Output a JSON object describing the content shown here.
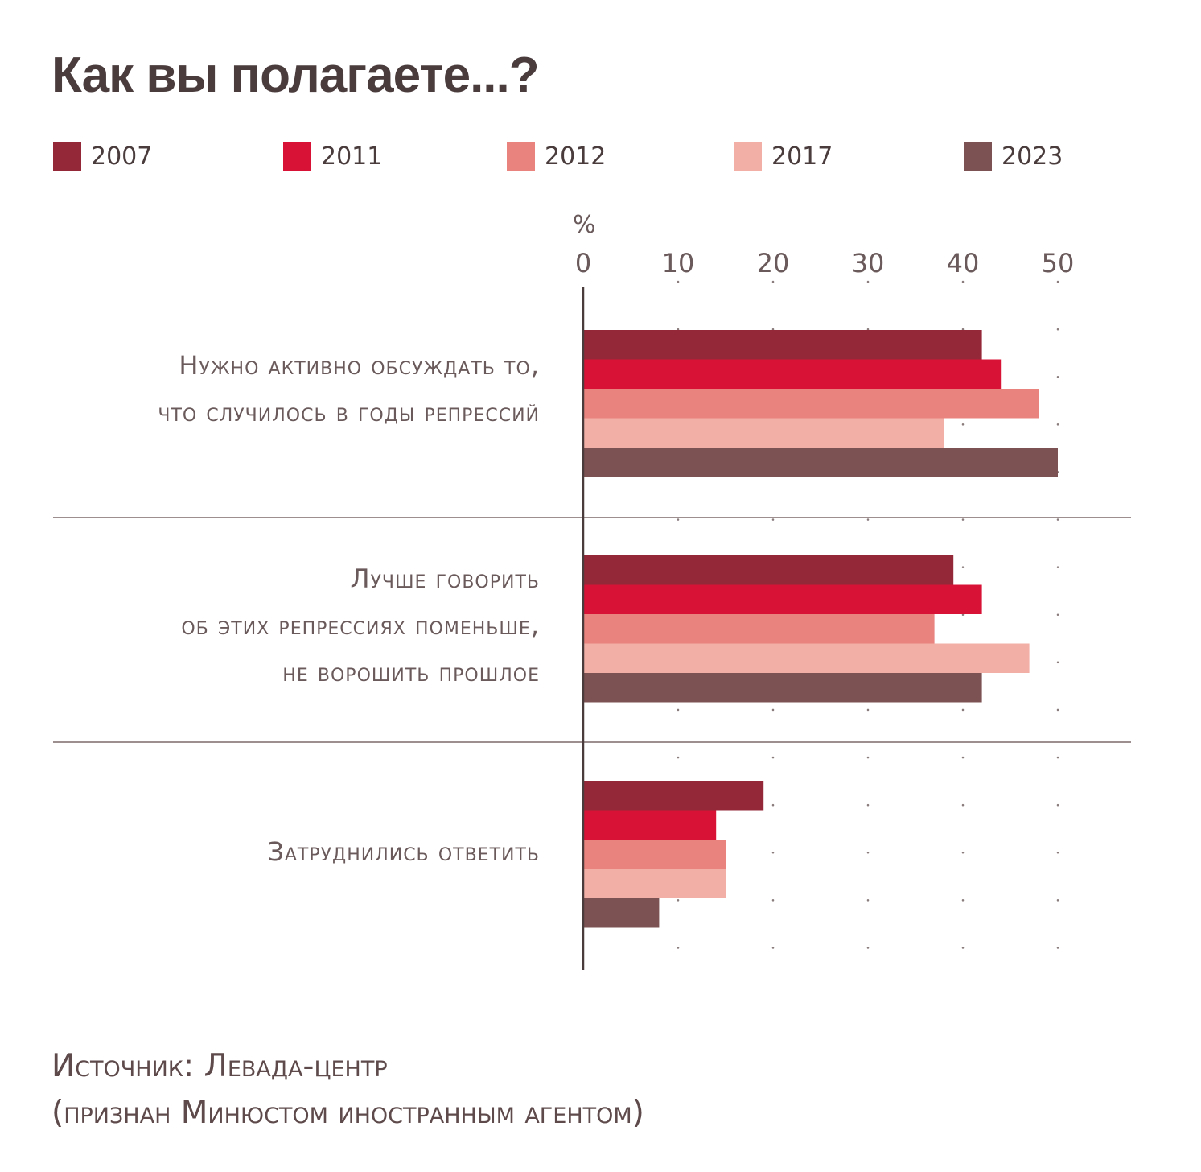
{
  "title": "Как вы полагаете...?",
  "source": "Источник: Левада-центр\n(признан Минюстом иностранным агентом)",
  "chart_data": {
    "type": "bar",
    "orientation": "horizontal",
    "unit_label": "%",
    "xlim": [
      0,
      50
    ],
    "xticks": [
      0,
      10,
      20,
      30,
      40,
      50
    ],
    "grid": "dotted",
    "legend_position": "top",
    "categories": [
      "Нужно активно обсуждать то,\nчто случилось в годы репрессий",
      "Лучше говорить\nоб этих репрессиях поменьше,\nне ворошить прошлое",
      "Затруднились ответить"
    ],
    "series": [
      {
        "name": "2007",
        "color": "#952838",
        "values": [
          42,
          39,
          19
        ]
      },
      {
        "name": "2011",
        "color": "#d81236",
        "values": [
          44,
          42,
          14
        ]
      },
      {
        "name": "2012",
        "color": "#e8837e",
        "values": [
          48,
          37,
          15
        ]
      },
      {
        "name": "2017",
        "color": "#f2afa6",
        "values": [
          38,
          47,
          15
        ]
      },
      {
        "name": "2023",
        "color": "#7d5252",
        "values": [
          50,
          42,
          8
        ]
      }
    ]
  }
}
